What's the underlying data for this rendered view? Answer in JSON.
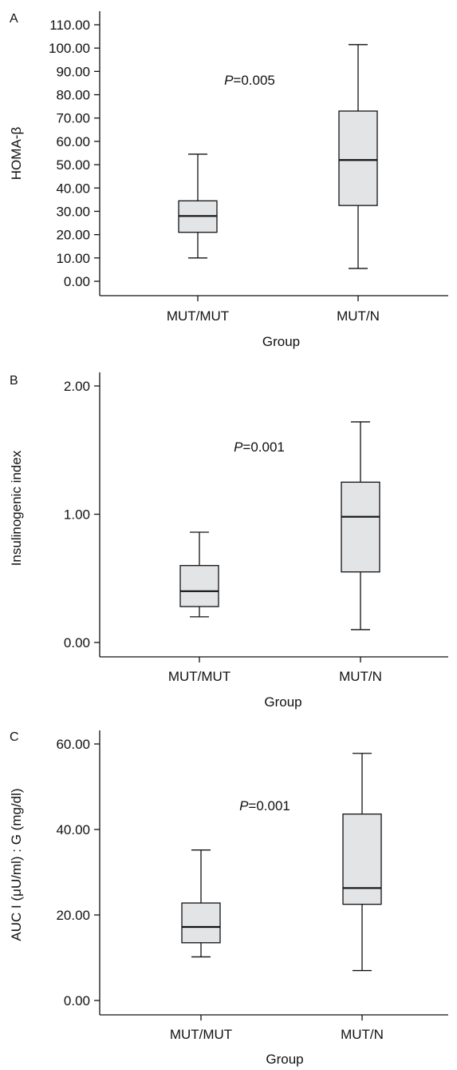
{
  "chart_data": [
    {
      "type": "box",
      "panel": "A",
      "ylabel": "HOMA-β",
      "xlabel": "Group",
      "categories": [
        "MUT/MUT",
        "MUT/N"
      ],
      "ylim": [
        0,
        110
      ],
      "yticks": [
        "0.00",
        "10.00",
        "20.00",
        "30.00",
        "40.00",
        "50.00",
        "60.00",
        "70.00",
        "80.00",
        "90.00",
        "100.00",
        "110.00"
      ],
      "p_prefix": "P",
      "p_value": "=0.005",
      "boxes": [
        {
          "category": "MUT/MUT",
          "min": 10,
          "q1": 21,
          "median": 28,
          "q3": 34.5,
          "max": 54.5
        },
        {
          "category": "MUT/N",
          "min": 5.5,
          "q1": 32.5,
          "median": 52,
          "q3": 73,
          "max": 101.5
        }
      ],
      "box_fill": "#e3e4e6",
      "line_color": "#111111",
      "grid": false
    },
    {
      "type": "box",
      "panel": "B",
      "ylabel": "Insulinogenic index",
      "xlabel": "Group",
      "categories": [
        "MUT/MUT",
        "MUT/N"
      ],
      "ylim": [
        0,
        2
      ],
      "yticks": [
        "0.00",
        "1.00",
        "2.00"
      ],
      "p_prefix": "P",
      "p_value": "=0.001",
      "boxes": [
        {
          "category": "MUT/MUT",
          "min": 0.2,
          "q1": 0.28,
          "median": 0.4,
          "q3": 0.6,
          "max": 0.86
        },
        {
          "category": "MUT/N",
          "min": 0.1,
          "q1": 0.55,
          "median": 0.98,
          "q3": 1.25,
          "max": 1.72
        }
      ],
      "box_fill": "#e3e4e6",
      "line_color": "#111111",
      "grid": false
    },
    {
      "type": "box",
      "panel": "C",
      "ylabel": "AUC I (μU/ml) : G (mg/dl)",
      "xlabel": "Group",
      "categories": [
        "MUT/MUT",
        "MUT/N"
      ],
      "ylim": [
        0,
        60
      ],
      "yticks": [
        "0.00",
        "20.00",
        "40.00",
        "60.00"
      ],
      "p_prefix": "P",
      "p_value": "=0.001",
      "boxes": [
        {
          "category": "MUT/MUT",
          "min": 10.2,
          "q1": 13.5,
          "median": 17.2,
          "q3": 22.8,
          "max": 35.2
        },
        {
          "category": "MUT/N",
          "min": 7,
          "q1": 22.5,
          "median": 26.3,
          "q3": 43.6,
          "max": 57.8
        }
      ],
      "box_fill": "#e3e4e6",
      "line_color": "#111111",
      "grid": false
    }
  ]
}
